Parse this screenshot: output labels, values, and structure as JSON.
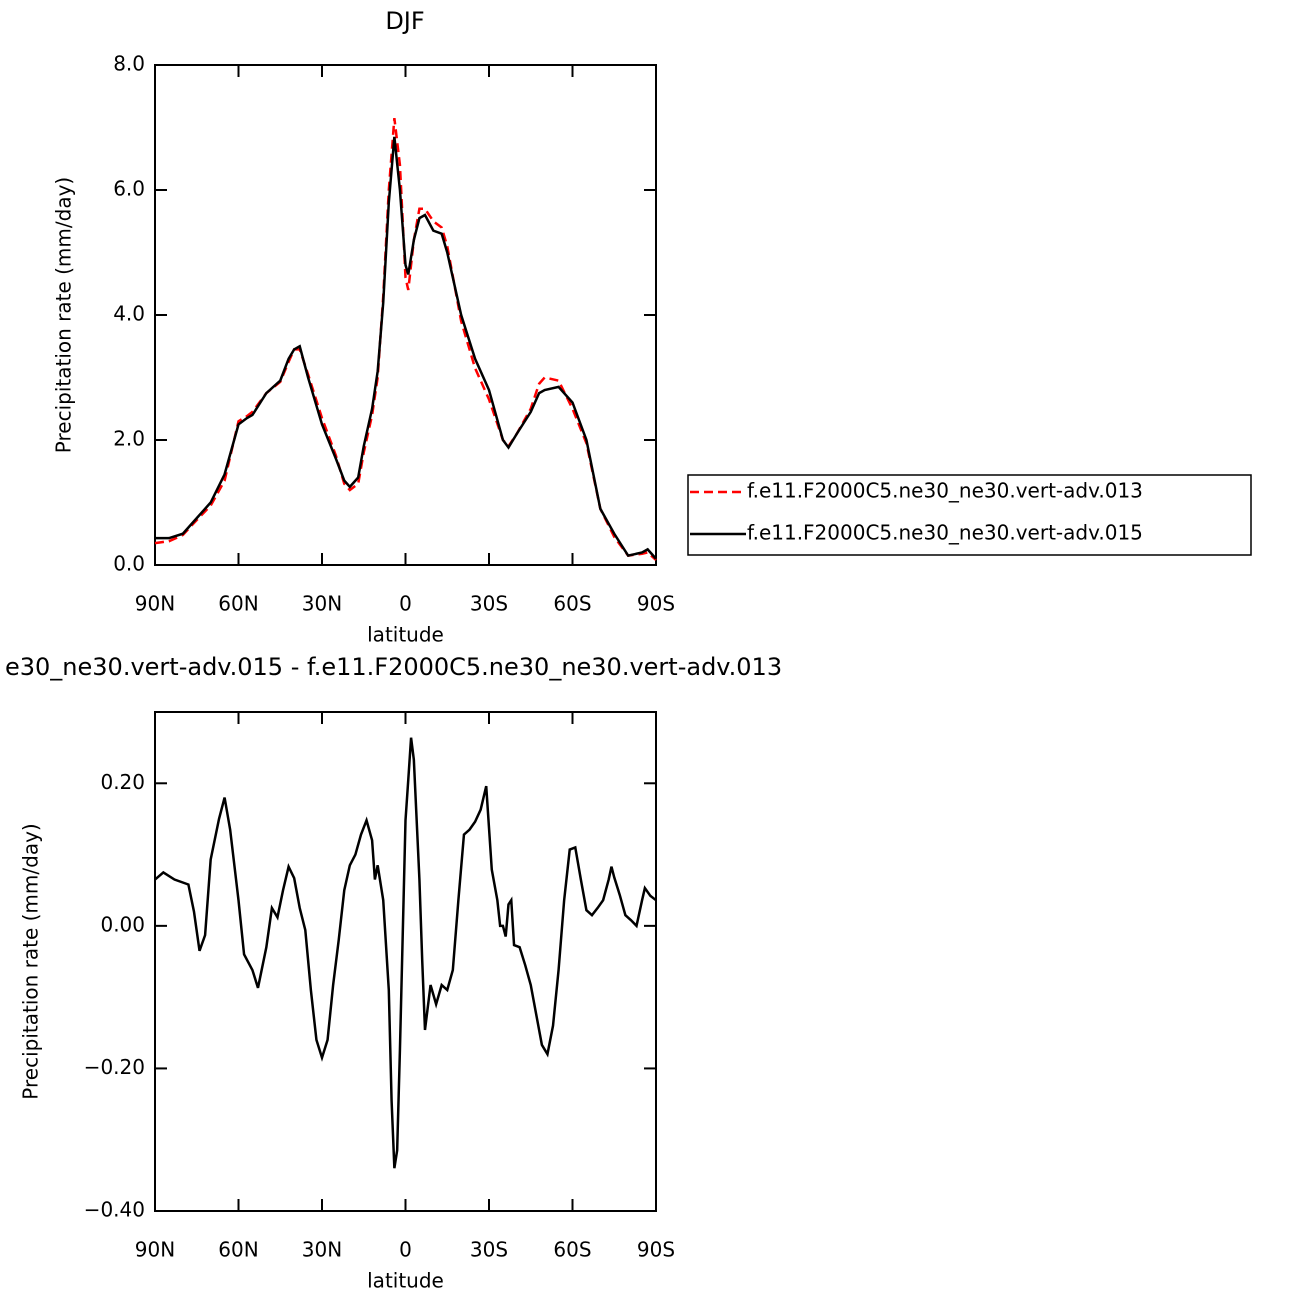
{
  "chart_data": [
    {
      "type": "line",
      "title": "DJF",
      "xlabel": "latitude",
      "ylabel": "Precipitation rate (mm/day)",
      "x": [
        90,
        85,
        80,
        75,
        70,
        65,
        60,
        57,
        55,
        50,
        45,
        42,
        40,
        38,
        35,
        30,
        25,
        22,
        20,
        17,
        15,
        12,
        10,
        8,
        6,
        4,
        2,
        0,
        -1,
        -3,
        -5,
        -7,
        -10,
        -13,
        -15,
        -20,
        -25,
        -30,
        -35,
        -37,
        -40,
        -45,
        -48,
        -50,
        -55,
        -60,
        -65,
        -70,
        -75,
        -80,
        -85,
        -87,
        -90
      ],
      "series": [
        {
          "name": "f.e11.F2000C5.ne30_ne30.vert-adv.013",
          "color": "#ff0000",
          "dash": true,
          "values": [
            0.35,
            0.38,
            0.48,
            0.72,
            0.95,
            1.35,
            2.3,
            2.38,
            2.45,
            2.75,
            2.93,
            3.25,
            3.45,
            3.45,
            3.05,
            2.35,
            1.75,
            1.3,
            1.2,
            1.3,
            1.8,
            2.4,
            3.0,
            4.3,
            6.0,
            7.15,
            6.4,
            4.6,
            4.4,
            5.2,
            5.7,
            5.7,
            5.5,
            5.4,
            5.1,
            3.9,
            3.15,
            2.65,
            2.0,
            1.9,
            2.1,
            2.5,
            2.9,
            3.0,
            2.95,
            2.5,
            1.95,
            0.9,
            0.45,
            0.15,
            0.18,
            0.2,
            0.08
          ]
        },
        {
          "name": "f.e11.F2000C5.ne30_ne30.vert-adv.015",
          "color": "#000000",
          "dash": false,
          "values": [
            0.43,
            0.43,
            0.5,
            0.75,
            1.0,
            1.45,
            2.25,
            2.35,
            2.4,
            2.75,
            2.95,
            3.3,
            3.45,
            3.5,
            3.0,
            2.25,
            1.7,
            1.35,
            1.25,
            1.4,
            1.9,
            2.5,
            3.1,
            4.2,
            5.8,
            6.85,
            6.0,
            4.8,
            4.65,
            5.2,
            5.55,
            5.6,
            5.35,
            5.3,
            5.0,
            4.0,
            3.3,
            2.8,
            2.0,
            1.88,
            2.1,
            2.45,
            2.75,
            2.8,
            2.85,
            2.6,
            2.0,
            0.9,
            0.5,
            0.15,
            0.2,
            0.25,
            0.1
          ]
        }
      ],
      "xlim": [
        90,
        -90
      ],
      "xticks": [
        {
          "value": 90,
          "label": "90N"
        },
        {
          "value": 60,
          "label": "60N"
        },
        {
          "value": 30,
          "label": "30N"
        },
        0,
        {
          "value": -30,
          "label": "30S"
        },
        {
          "value": -60,
          "label": "60S"
        },
        {
          "value": -90,
          "label": "90S"
        }
      ],
      "ylim": [
        0,
        8
      ],
      "yticks": [
        {
          "value": 0,
          "label": "0.0"
        },
        {
          "value": 2,
          "label": "2.0"
        },
        {
          "value": 4,
          "label": "4.0"
        },
        {
          "value": 6,
          "label": "6.0"
        },
        {
          "value": 8,
          "label": "8.0"
        }
      ],
      "legend": "right"
    },
    {
      "type": "line",
      "title": "e30_ne30.vert-adv.015 - f.e11.F2000C5.ne30_ne30.vert-adv.013",
      "xlabel": "latitude",
      "ylabel": "Precipitation rate (mm/day)",
      "x": [
        90,
        87,
        83,
        78,
        76,
        74,
        72,
        70,
        67,
        65,
        63,
        60,
        58,
        55,
        53,
        50,
        48,
        46,
        44,
        42,
        40,
        38,
        36,
        34,
        32,
        30,
        28,
        26,
        24,
        22,
        20,
        18,
        16,
        14,
        12,
        11,
        10,
        8,
        6,
        5,
        4,
        3,
        2,
        0,
        -1,
        -2,
        -3,
        -5,
        -6,
        -7,
        -9,
        -11,
        -13,
        -15,
        -17,
        -19,
        -21,
        -23,
        -25,
        -27,
        -29,
        -31,
        -33,
        -34,
        -35,
        -36,
        -37,
        -38,
        -39,
        -41,
        -43,
        -45,
        -47,
        -49,
        -51,
        -53,
        -55,
        -57,
        -59,
        -61,
        -63,
        -65,
        -67,
        -69,
        -71,
        -73,
        -74,
        -75,
        -77,
        -79,
        -81,
        -83,
        -85,
        -86,
        -88,
        -90
      ],
      "series": [
        {
          "color": "#000000",
          "dash": false,
          "values": [
            0.065,
            0.075,
            0.065,
            0.058,
            0.02,
            -0.035,
            -0.013,
            0.093,
            0.15,
            0.18,
            0.135,
            0.036,
            -0.04,
            -0.062,
            -0.087,
            -0.03,
            0.025,
            0.012,
            0.05,
            0.083,
            0.067,
            0.025,
            -0.006,
            -0.09,
            -0.16,
            -0.185,
            -0.16,
            -0.083,
            -0.02,
            0.05,
            0.085,
            0.1,
            0.128,
            0.148,
            0.12,
            0.065,
            0.085,
            0.036,
            -0.09,
            -0.245,
            -0.34,
            -0.315,
            -0.174,
            0.148,
            0.205,
            0.264,
            0.233,
            0.065,
            -0.048,
            -0.146,
            -0.083,
            -0.11,
            -0.083,
            -0.09,
            -0.062,
            0.036,
            0.128,
            0.135,
            0.146,
            0.163,
            0.196,
            0.079,
            0.036,
            0.0,
            0.0,
            -0.015,
            0.03,
            0.036,
            -0.027,
            -0.03,
            -0.055,
            -0.083,
            -0.125,
            -0.167,
            -0.18,
            -0.14,
            -0.062,
            0.036,
            0.107,
            0.11,
            0.065,
            0.022,
            0.015,
            0.025,
            0.036,
            0.065,
            0.083,
            0.068,
            0.043,
            0.015,
            0.008,
            0.0,
            0.036,
            0.053,
            0.042,
            0.036
          ]
        }
      ],
      "xlim": [
        90,
        -90
      ],
      "xticks": [
        {
          "value": 90,
          "label": "90N"
        },
        {
          "value": 60,
          "label": "60N"
        },
        {
          "value": 30,
          "label": "30N"
        },
        0,
        {
          "value": -30,
          "label": "30S"
        },
        {
          "value": -60,
          "label": "60S"
        },
        {
          "value": -90,
          "label": "90S"
        }
      ],
      "ylim": [
        -0.4,
        0.3
      ],
      "yticks": [
        {
          "value": -0.4,
          "label": "−0.40"
        },
        {
          "value": -0.2,
          "label": "−0.20"
        },
        {
          "value": 0,
          "label": "0.00"
        },
        {
          "value": 0.2,
          "label": "0.20"
        }
      ]
    }
  ]
}
